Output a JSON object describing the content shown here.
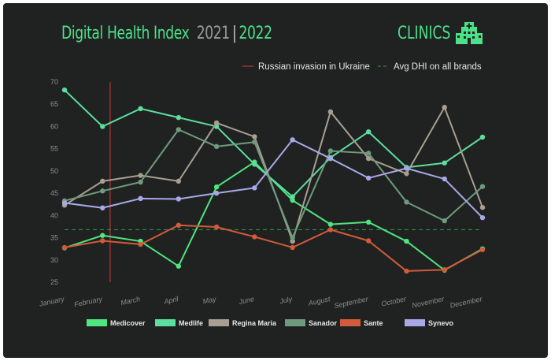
{
  "header": {
    "title": "Digital Health Index",
    "year_prev": "2021",
    "separator": "|",
    "year_current": "2022",
    "category": "CLINICS",
    "category_icon": "hospital-icon"
  },
  "chart_data": {
    "type": "line",
    "title": "Digital Health Index",
    "xlabel": "",
    "ylabel": "",
    "categories": [
      "January",
      "February",
      "March",
      "April",
      "May",
      "June",
      "July",
      "August",
      "September",
      "October",
      "November",
      "December"
    ],
    "ylim": [
      25,
      70
    ],
    "yticks": [
      25,
      30,
      35,
      40,
      45,
      50,
      55,
      60,
      65,
      70
    ],
    "grid": false,
    "legend_position": "bottom",
    "annotations": [
      {
        "label": "Russian invasion in Ukraine",
        "type": "vline",
        "x": "February",
        "offset": 0.2,
        "color": "#d83a3a",
        "style": "solid"
      },
      {
        "label": "Avg DHI on all brands",
        "type": "hline",
        "y": 36.8,
        "color": "#2f9a4c",
        "style": "dashed"
      }
    ],
    "series": [
      {
        "name": "Medicover",
        "color": "#4ee67f",
        "values": [
          32.7,
          35.5,
          34.2,
          28.6,
          46.4,
          52.0,
          43.4,
          38.0,
          38.5,
          34.2,
          27.7,
          32.5
        ]
      },
      {
        "name": "Medlife",
        "color": "#5cde9e",
        "values": [
          68.2,
          60.0,
          64.0,
          62.0,
          60.0,
          51.5,
          44.2,
          53.0,
          58.8,
          50.8,
          51.8,
          57.6
        ]
      },
      {
        "name": "Regina Maria",
        "color": "#a89f92",
        "values": [
          42.3,
          47.7,
          49.0,
          47.7,
          60.8,
          57.7,
          34.2,
          63.3,
          52.8,
          49.4,
          64.3,
          41.8
        ]
      },
      {
        "name": "Sanador",
        "color": "#6f9b7d",
        "values": [
          43.3,
          45.5,
          47.5,
          59.3,
          55.5,
          56.5,
          35.0,
          54.5,
          54.0,
          43.0,
          38.8,
          46.5
        ]
      },
      {
        "name": "Sante",
        "color": "#d35a3a",
        "values": [
          32.8,
          34.3,
          33.5,
          37.8,
          37.4,
          35.2,
          32.8,
          36.8,
          34.3,
          27.5,
          27.8,
          32.3
        ]
      },
      {
        "name": "Synevo",
        "color": "#a8a8e8",
        "values": [
          42.8,
          41.7,
          43.8,
          43.7,
          45.0,
          46.2,
          57.0,
          52.8,
          48.4,
          50.6,
          48.2,
          39.5
        ]
      }
    ]
  }
}
